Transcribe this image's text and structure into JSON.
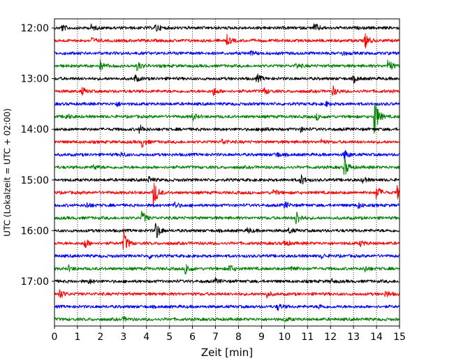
{
  "chart_data": {
    "type": "line",
    "title": "",
    "xlabel": "Zeit  [min]",
    "ylabel": "UTC (Lokalzeit = UTC + 02:00)",
    "xlim": [
      0,
      15
    ],
    "x_ticks": [
      0,
      1,
      2,
      3,
      4,
      5,
      6,
      7,
      8,
      9,
      10,
      11,
      12,
      13,
      14,
      15
    ],
    "grid": "vertical dotted",
    "y_tick_labels": [
      "12:00",
      "13:00",
      "14:00",
      "15:00",
      "16:00",
      "17:00"
    ],
    "y_tick_times_utc": [
      "12:00",
      "13:00",
      "14:00",
      "15:00",
      "16:00",
      "17:00"
    ],
    "trace_interval_min": 15,
    "color_cycle": [
      "#000000",
      "#ff0000",
      "#0000ff",
      "#008000"
    ],
    "series": [
      {
        "start": "12:00",
        "color": "#000000",
        "events": [
          {
            "t": 0.3,
            "a": 5
          },
          {
            "t": 1.6,
            "a": 4
          },
          {
            "t": 4.4,
            "a": 6
          },
          {
            "t": 11.3,
            "a": 7
          }
        ]
      },
      {
        "start": "12:15",
        "color": "#ff0000",
        "events": [
          {
            "t": 1.6,
            "a": 4
          },
          {
            "t": 7.5,
            "a": 7
          },
          {
            "t": 13.5,
            "a": 11
          }
        ]
      },
      {
        "start": "12:30",
        "color": "#0000ff",
        "events": [
          {
            "t": 8.5,
            "a": 3
          },
          {
            "t": 12.5,
            "a": 3
          }
        ]
      },
      {
        "start": "12:45",
        "color": "#008000",
        "events": [
          {
            "t": 2.0,
            "a": 7
          },
          {
            "t": 3.6,
            "a": 7
          },
          {
            "t": 10.5,
            "a": 4
          },
          {
            "t": 14.5,
            "a": 11
          }
        ]
      },
      {
        "start": "13:00",
        "color": "#000000",
        "events": [
          {
            "t": 3.5,
            "a": 5
          },
          {
            "t": 8.8,
            "a": 6
          },
          {
            "t": 13.0,
            "a": 5
          }
        ]
      },
      {
        "start": "13:15",
        "color": "#ff0000",
        "events": [
          {
            "t": 1.2,
            "a": 5
          },
          {
            "t": 6.9,
            "a": 6
          },
          {
            "t": 9.1,
            "a": 5
          },
          {
            "t": 12.1,
            "a": 7
          }
        ]
      },
      {
        "start": "13:30",
        "color": "#0000ff",
        "events": [
          {
            "t": 2.7,
            "a": 3
          },
          {
            "t": 11.8,
            "a": 3
          }
        ]
      },
      {
        "start": "13:45",
        "color": "#008000",
        "events": [
          {
            "t": 0.5,
            "a": 4
          },
          {
            "t": 6.0,
            "a": 5
          },
          {
            "t": 11.4,
            "a": 4
          },
          {
            "t": 13.9,
            "a": 30
          }
        ]
      },
      {
        "start": "14:00",
        "color": "#000000",
        "events": [
          {
            "t": 3.7,
            "a": 6
          },
          {
            "t": 9.0,
            "a": 4
          },
          {
            "t": 10.7,
            "a": 3
          }
        ]
      },
      {
        "start": "14:15",
        "color": "#ff0000",
        "events": [
          {
            "t": 3.8,
            "a": 7
          },
          {
            "t": 7.3,
            "a": 4
          },
          {
            "t": 11.6,
            "a": 3
          }
        ]
      },
      {
        "start": "14:30",
        "color": "#0000ff",
        "events": [
          {
            "t": 2.9,
            "a": 3
          },
          {
            "t": 9.6,
            "a": 5
          },
          {
            "t": 12.6,
            "a": 7
          }
        ]
      },
      {
        "start": "14:45",
        "color": "#008000",
        "events": [
          {
            "t": 1.7,
            "a": 4
          },
          {
            "t": 12.6,
            "a": 14
          }
        ]
      },
      {
        "start": "15:00",
        "color": "#000000",
        "events": [
          {
            "t": 4.1,
            "a": 4
          },
          {
            "t": 10.7,
            "a": 8
          },
          {
            "t": 13.4,
            "a": 4
          }
        ]
      },
      {
        "start": "15:15",
        "color": "#ff0000",
        "events": [
          {
            "t": 4.3,
            "a": 22
          },
          {
            "t": 9.5,
            "a": 5
          },
          {
            "t": 14.0,
            "a": 11
          },
          {
            "t": 14.9,
            "a": 9
          }
        ]
      },
      {
        "start": "15:30",
        "color": "#0000ff",
        "events": [
          {
            "t": 1.4,
            "a": 4
          },
          {
            "t": 5.2,
            "a": 5
          },
          {
            "t": 10.0,
            "a": 5
          },
          {
            "t": 13.2,
            "a": 4
          }
        ]
      },
      {
        "start": "15:45",
        "color": "#008000",
        "events": [
          {
            "t": 3.8,
            "a": 10
          },
          {
            "t": 10.5,
            "a": 12
          }
        ]
      },
      {
        "start": "16:00",
        "color": "#000000",
        "events": [
          {
            "t": 4.4,
            "a": 14
          },
          {
            "t": 8.4,
            "a": 4
          },
          {
            "t": 10.2,
            "a": 4
          }
        ]
      },
      {
        "start": "16:15",
        "color": "#ff0000",
        "events": [
          {
            "t": 1.3,
            "a": 8
          },
          {
            "t": 3.0,
            "a": 18
          },
          {
            "t": 10.0,
            "a": 5
          },
          {
            "t": 13.3,
            "a": 4
          }
        ]
      },
      {
        "start": "16:30",
        "color": "#0000ff",
        "events": [
          {
            "t": 4.1,
            "a": 3
          },
          {
            "t": 11.6,
            "a": 3
          }
        ]
      },
      {
        "start": "16:45",
        "color": "#008000",
        "events": [
          {
            "t": 0.6,
            "a": 4
          },
          {
            "t": 5.7,
            "a": 9
          },
          {
            "t": 7.6,
            "a": 6
          },
          {
            "t": 10.3,
            "a": 5
          },
          {
            "t": 13.5,
            "a": 4
          }
        ]
      },
      {
        "start": "17:00",
        "color": "#000000",
        "events": [
          {
            "t": 1.5,
            "a": 3
          },
          {
            "t": 7.0,
            "a": 3
          },
          {
            "t": 12.0,
            "a": 3
          }
        ]
      },
      {
        "start": "17:15",
        "color": "#ff0000",
        "events": [
          {
            "t": 0.2,
            "a": 8
          },
          {
            "t": 9.2,
            "a": 5
          },
          {
            "t": 14.4,
            "a": 5
          }
        ]
      },
      {
        "start": "17:30",
        "color": "#0000ff",
        "events": [
          {
            "t": 9.7,
            "a": 5
          },
          {
            "t": 11.5,
            "a": 3
          }
        ]
      },
      {
        "start": "17:45",
        "color": "#008000",
        "events": [
          {
            "t": 3.0,
            "a": 3
          },
          {
            "t": 10.0,
            "a": 3
          }
        ]
      }
    ]
  }
}
